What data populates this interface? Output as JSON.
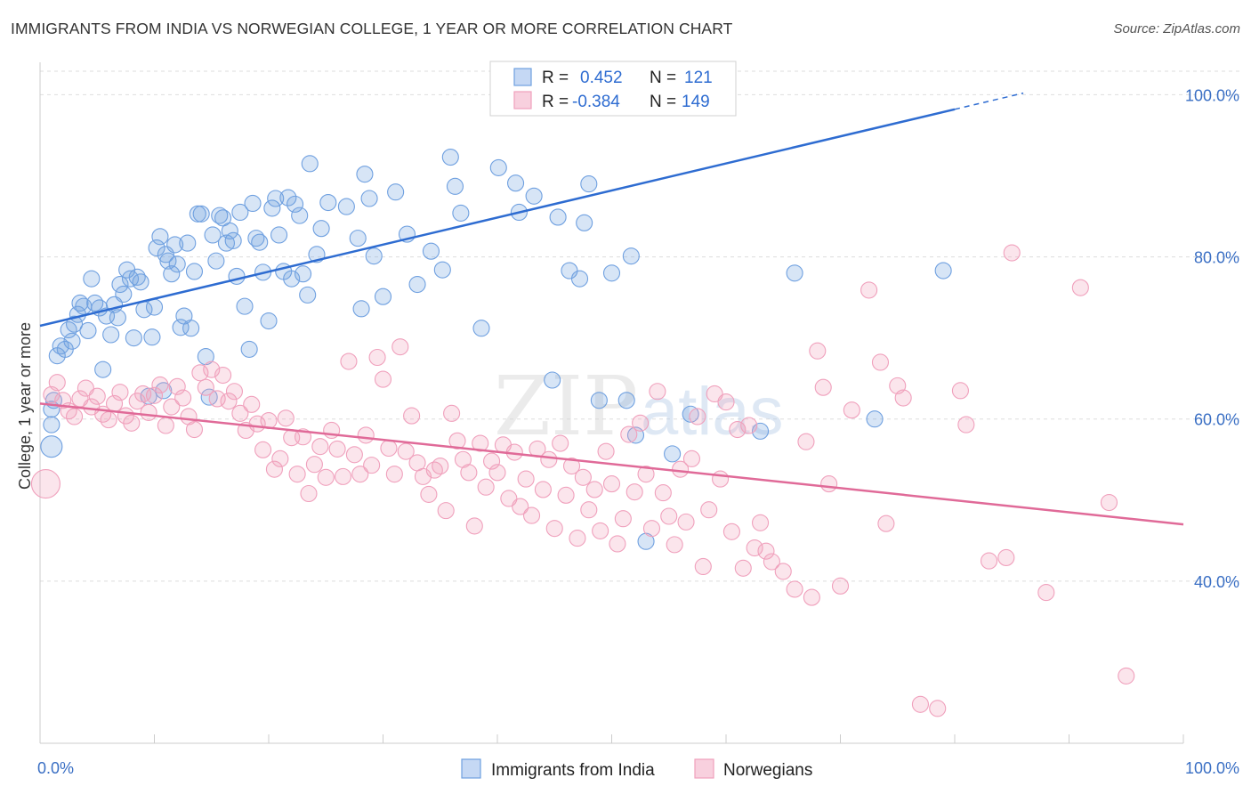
{
  "title": "IMMIGRANTS FROM INDIA VS NORWEGIAN COLLEGE, 1 YEAR OR MORE CORRELATION CHART",
  "source": "Source: ZipAtlas.com",
  "watermark": {
    "zip": "ZIP",
    "atlas": "atlas"
  },
  "chart_data": {
    "type": "scatter",
    "title": "IMMIGRANTS FROM INDIA VS NORWEGIAN COLLEGE, 1 YEAR OR MORE CORRELATION CHART",
    "xlabel": "",
    "ylabel": "College, 1 year or more",
    "xlim": [
      0,
      100
    ],
    "ylim": [
      20,
      104
    ],
    "x_tick_labels": [
      "0.0%",
      "100.0%"
    ],
    "y_ticks": [
      40,
      60,
      80,
      100
    ],
    "y_tick_labels": [
      "40.0%",
      "60.0%",
      "80.0%",
      "100.0%"
    ],
    "grid": true,
    "legend": {
      "r_label": "R =",
      "n_label": "N =",
      "entries": [
        {
          "r": "0.452",
          "n": "121"
        },
        {
          "r": "-0.384",
          "n": "149"
        }
      ]
    },
    "series": [
      {
        "name": "Immigrants from India",
        "color": "#6fa0e0",
        "line_color": "#2e6cd1",
        "trend": {
          "x0": 0,
          "y0": 71.5,
          "x1": 80,
          "y1": 98.2,
          "dash_x1": 86,
          "dash_y1": 100.2
        },
        "points": [
          [
            1.0,
            56.6
          ],
          [
            1.0,
            59.3
          ],
          [
            1.0,
            61.2
          ],
          [
            1.2,
            62.3
          ],
          [
            1.5,
            67.8
          ],
          [
            1.8,
            69.0
          ],
          [
            2.2,
            68.6
          ],
          [
            2.5,
            71.0
          ],
          [
            2.8,
            69.6
          ],
          [
            3.0,
            71.7
          ],
          [
            3.3,
            72.9
          ],
          [
            3.5,
            74.3
          ],
          [
            3.8,
            73.9
          ],
          [
            4.2,
            70.9
          ],
          [
            4.5,
            77.3
          ],
          [
            4.8,
            74.3
          ],
          [
            5.2,
            73.7
          ],
          [
            5.5,
            66.1
          ],
          [
            5.8,
            72.7
          ],
          [
            6.2,
            70.4
          ],
          [
            6.5,
            74.1
          ],
          [
            6.8,
            72.5
          ],
          [
            7.0,
            76.6
          ],
          [
            7.3,
            75.4
          ],
          [
            7.6,
            78.4
          ],
          [
            7.9,
            77.3
          ],
          [
            8.2,
            70.0
          ],
          [
            8.5,
            77.5
          ],
          [
            8.8,
            76.9
          ],
          [
            9.1,
            73.5
          ],
          [
            9.5,
            62.8
          ],
          [
            9.8,
            70.1
          ],
          [
            10.0,
            73.8
          ],
          [
            10.2,
            81.1
          ],
          [
            10.5,
            82.5
          ],
          [
            10.8,
            63.5
          ],
          [
            11.0,
            80.3
          ],
          [
            11.2,
            79.5
          ],
          [
            11.5,
            77.9
          ],
          [
            11.8,
            81.5
          ],
          [
            12.0,
            79.1
          ],
          [
            12.3,
            71.3
          ],
          [
            12.6,
            72.7
          ],
          [
            12.9,
            81.7
          ],
          [
            13.2,
            71.2
          ],
          [
            13.5,
            78.2
          ],
          [
            13.8,
            85.3
          ],
          [
            14.1,
            85.3
          ],
          [
            14.5,
            67.7
          ],
          [
            14.8,
            62.7
          ],
          [
            15.1,
            82.7
          ],
          [
            15.4,
            79.5
          ],
          [
            15.7,
            85.1
          ],
          [
            16.0,
            84.8
          ],
          [
            16.3,
            81.7
          ],
          [
            16.6,
            83.2
          ],
          [
            16.9,
            82.0
          ],
          [
            17.2,
            77.6
          ],
          [
            17.5,
            85.5
          ],
          [
            17.9,
            73.9
          ],
          [
            18.3,
            68.6
          ],
          [
            18.6,
            86.6
          ],
          [
            18.9,
            82.3
          ],
          [
            19.2,
            81.8
          ],
          [
            19.5,
            78.1
          ],
          [
            20.0,
            72.1
          ],
          [
            20.3,
            86.0
          ],
          [
            20.6,
            87.2
          ],
          [
            20.9,
            82.7
          ],
          [
            21.3,
            78.2
          ],
          [
            21.7,
            87.3
          ],
          [
            22.0,
            77.3
          ],
          [
            22.3,
            86.5
          ],
          [
            22.7,
            85.1
          ],
          [
            23.0,
            77.9
          ],
          [
            23.4,
            75.3
          ],
          [
            23.6,
            91.5
          ],
          [
            24.2,
            80.3
          ],
          [
            24.6,
            83.5
          ],
          [
            25.2,
            86.7
          ],
          [
            26.8,
            86.2
          ],
          [
            27.8,
            82.3
          ],
          [
            28.1,
            73.6
          ],
          [
            28.4,
            90.2
          ],
          [
            28.8,
            87.2
          ],
          [
            29.2,
            80.1
          ],
          [
            30.0,
            75.1
          ],
          [
            31.1,
            88.0
          ],
          [
            32.1,
            82.8
          ],
          [
            33.0,
            76.6
          ],
          [
            34.2,
            80.7
          ],
          [
            35.2,
            78.4
          ],
          [
            35.9,
            92.3
          ],
          [
            36.3,
            88.7
          ],
          [
            36.8,
            85.4
          ],
          [
            38.6,
            71.2
          ],
          [
            40.1,
            91.0
          ],
          [
            41.6,
            89.1
          ],
          [
            41.9,
            85.5
          ],
          [
            43.2,
            87.5
          ],
          [
            44.8,
            64.8
          ],
          [
            45.3,
            84.9
          ],
          [
            46.3,
            78.3
          ],
          [
            47.2,
            77.3
          ],
          [
            47.6,
            84.2
          ],
          [
            48.0,
            89.0
          ],
          [
            48.9,
            62.3
          ],
          [
            50.0,
            78.0
          ],
          [
            51.3,
            62.3
          ],
          [
            51.7,
            80.1
          ],
          [
            52.1,
            58.0
          ],
          [
            53.0,
            44.9
          ],
          [
            55.3,
            55.7
          ],
          [
            56.9,
            60.6
          ],
          [
            63.0,
            58.5
          ],
          [
            66.0,
            78.0
          ],
          [
            73.0,
            60.0
          ],
          [
            79.0,
            78.3
          ]
        ]
      },
      {
        "name": "Norwegians",
        "color": "#f0a0bc",
        "line_color": "#e06a98",
        "trend": {
          "x0": 0,
          "y0": 61.9,
          "x1": 100,
          "y1": 47.0
        },
        "points": [
          [
            0.5,
            52.0
          ],
          [
            1.0,
            63.0
          ],
          [
            1.5,
            64.5
          ],
          [
            2.0,
            62.3
          ],
          [
            2.5,
            61.0
          ],
          [
            3.0,
            60.3
          ],
          [
            3.5,
            62.5
          ],
          [
            4.0,
            63.8
          ],
          [
            4.5,
            61.5
          ],
          [
            5.0,
            62.8
          ],
          [
            5.5,
            60.6
          ],
          [
            6.0,
            59.9
          ],
          [
            6.5,
            61.9
          ],
          [
            7.0,
            63.3
          ],
          [
            7.5,
            60.4
          ],
          [
            8.0,
            59.5
          ],
          [
            8.5,
            62.2
          ],
          [
            9.0,
            63.1
          ],
          [
            9.5,
            60.8
          ],
          [
            10.0,
            62.9
          ],
          [
            10.5,
            64.2
          ],
          [
            11.0,
            59.2
          ],
          [
            11.5,
            61.5
          ],
          [
            12.0,
            64.0
          ],
          [
            12.5,
            62.6
          ],
          [
            13.0,
            60.3
          ],
          [
            13.5,
            58.7
          ],
          [
            14.0,
            65.7
          ],
          [
            14.5,
            63.9
          ],
          [
            15.0,
            66.1
          ],
          [
            15.5,
            62.5
          ],
          [
            16.0,
            65.4
          ],
          [
            16.5,
            62.2
          ],
          [
            17.0,
            63.4
          ],
          [
            17.5,
            60.7
          ],
          [
            18.0,
            58.6
          ],
          [
            18.5,
            61.8
          ],
          [
            19.0,
            59.4
          ],
          [
            19.5,
            56.2
          ],
          [
            20.0,
            59.8
          ],
          [
            20.5,
            53.8
          ],
          [
            21.0,
            55.1
          ],
          [
            21.5,
            60.1
          ],
          [
            22.0,
            57.7
          ],
          [
            22.5,
            53.2
          ],
          [
            23.0,
            57.8
          ],
          [
            23.5,
            50.8
          ],
          [
            24.0,
            54.4
          ],
          [
            24.5,
            56.6
          ],
          [
            25.0,
            52.8
          ],
          [
            25.5,
            58.6
          ],
          [
            26.0,
            56.3
          ],
          [
            26.5,
            52.9
          ],
          [
            27.0,
            67.1
          ],
          [
            27.5,
            55.6
          ],
          [
            28.0,
            53.2
          ],
          [
            28.5,
            58.0
          ],
          [
            29.0,
            54.3
          ],
          [
            29.5,
            67.6
          ],
          [
            30.0,
            64.9
          ],
          [
            30.5,
            56.4
          ],
          [
            31.0,
            53.2
          ],
          [
            31.5,
            68.9
          ],
          [
            32.0,
            56.0
          ],
          [
            32.5,
            60.4
          ],
          [
            33.0,
            54.6
          ],
          [
            33.5,
            52.9
          ],
          [
            34.0,
            50.7
          ],
          [
            34.5,
            53.7
          ],
          [
            35.0,
            54.2
          ],
          [
            35.5,
            48.7
          ],
          [
            36.0,
            60.7
          ],
          [
            36.5,
            57.3
          ],
          [
            37.0,
            55.0
          ],
          [
            37.5,
            53.4
          ],
          [
            38.0,
            46.8
          ],
          [
            38.5,
            57.0
          ],
          [
            39.0,
            51.6
          ],
          [
            39.5,
            54.8
          ],
          [
            40.0,
            53.4
          ],
          [
            40.5,
            56.8
          ],
          [
            41.0,
            50.2
          ],
          [
            41.5,
            55.9
          ],
          [
            42.0,
            49.2
          ],
          [
            42.5,
            52.6
          ],
          [
            43.0,
            48.1
          ],
          [
            43.5,
            56.3
          ],
          [
            44.0,
            51.3
          ],
          [
            44.5,
            55.0
          ],
          [
            45.0,
            46.5
          ],
          [
            45.5,
            57.0
          ],
          [
            46.0,
            50.6
          ],
          [
            46.5,
            54.2
          ],
          [
            47.0,
            45.3
          ],
          [
            47.5,
            52.8
          ],
          [
            48.0,
            48.8
          ],
          [
            48.5,
            51.3
          ],
          [
            49.0,
            46.2
          ],
          [
            49.5,
            56.0
          ],
          [
            50.0,
            52.0
          ],
          [
            50.5,
            44.6
          ],
          [
            51.0,
            47.7
          ],
          [
            51.5,
            58.1
          ],
          [
            52.0,
            51.0
          ],
          [
            52.5,
            59.5
          ],
          [
            53.0,
            53.2
          ],
          [
            53.5,
            46.5
          ],
          [
            54.0,
            63.4
          ],
          [
            54.5,
            50.9
          ],
          [
            55.0,
            48.0
          ],
          [
            55.5,
            44.5
          ],
          [
            56.0,
            53.8
          ],
          [
            56.5,
            47.3
          ],
          [
            57.0,
            55.1
          ],
          [
            57.5,
            60.3
          ],
          [
            58.0,
            41.8
          ],
          [
            58.5,
            48.8
          ],
          [
            59.0,
            63.1
          ],
          [
            59.5,
            52.6
          ],
          [
            60.0,
            62.1
          ],
          [
            60.5,
            46.1
          ],
          [
            61.0,
            58.7
          ],
          [
            61.5,
            41.6
          ],
          [
            62.0,
            59.2
          ],
          [
            62.5,
            44.1
          ],
          [
            63.0,
            47.2
          ],
          [
            63.5,
            43.7
          ],
          [
            64.0,
            42.4
          ],
          [
            65.0,
            41.2
          ],
          [
            66.0,
            39.0
          ],
          [
            67.0,
            57.2
          ],
          [
            67.5,
            38.0
          ],
          [
            68.0,
            68.4
          ],
          [
            68.5,
            63.9
          ],
          [
            69.0,
            52.0
          ],
          [
            70.0,
            39.4
          ],
          [
            71.0,
            61.1
          ],
          [
            72.5,
            75.9
          ],
          [
            73.5,
            67.0
          ],
          [
            74.0,
            47.1
          ],
          [
            75.0,
            64.1
          ],
          [
            75.5,
            62.6
          ],
          [
            77.0,
            24.8
          ],
          [
            78.5,
            24.3
          ],
          [
            80.5,
            63.5
          ],
          [
            81.0,
            59.3
          ],
          [
            83.0,
            42.5
          ],
          [
            84.5,
            42.9
          ],
          [
            85.0,
            80.5
          ],
          [
            88.0,
            38.6
          ],
          [
            91.0,
            76.2
          ],
          [
            93.5,
            49.7
          ],
          [
            95.0,
            28.3
          ]
        ]
      }
    ]
  },
  "bottom_legend": {
    "items": [
      {
        "label": "Immigrants from India",
        "color": "#6fa0e0"
      },
      {
        "label": "Norwegians",
        "color": "#f0a0bc"
      }
    ]
  }
}
